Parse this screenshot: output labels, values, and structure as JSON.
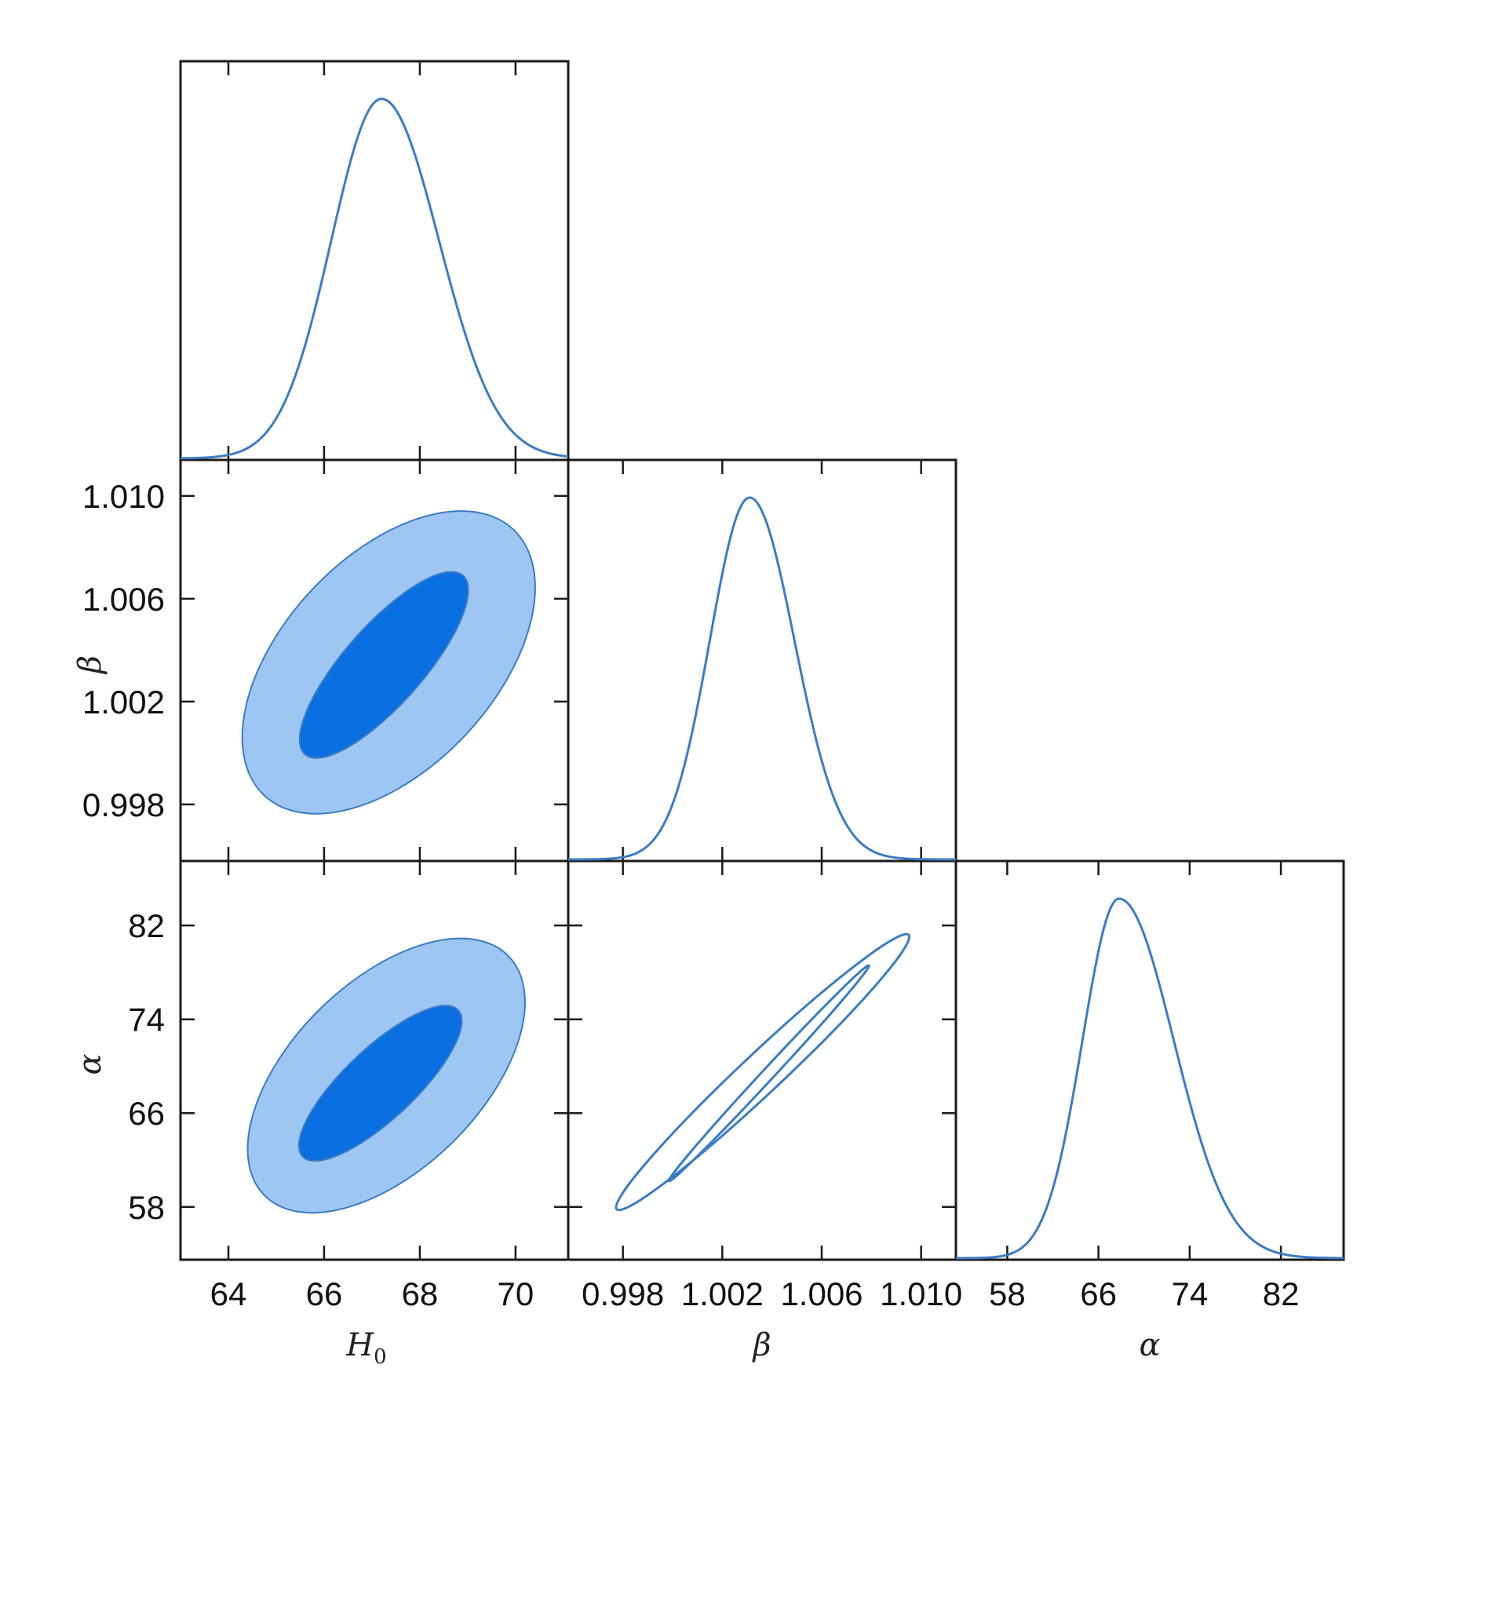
{
  "chart_data": {
    "type": "corner",
    "parameters": [
      {
        "key": "H0",
        "label": "H",
        "subscript": "0",
        "range": [
          63,
          71.1
        ],
        "ticks": [
          64,
          66,
          68,
          70
        ],
        "tick_labels": [
          "64",
          "66",
          "68",
          "70"
        ]
      },
      {
        "key": "beta",
        "label": "β",
        "subscript": "",
        "range": [
          0.9958,
          1.0114
        ],
        "ticks": [
          0.998,
          1.002,
          1.006,
          1.01
        ],
        "tick_labels": [
          "0.998",
          "1.002",
          "1.006",
          "1.010"
        ]
      },
      {
        "key": "alpha",
        "label": "α",
        "subscript": "",
        "range": [
          53.5,
          87.5
        ],
        "ticks": [
          58,
          66,
          74,
          82
        ],
        "tick_labels": [
          "58",
          "66",
          "74",
          "82"
        ]
      }
    ],
    "marginals": [
      {
        "param": "H0",
        "peak": 67.2,
        "sigma_left": 1.05,
        "sigma_right": 1.2
      },
      {
        "param": "beta",
        "peak": 1.0031,
        "sigma_left": 0.0016,
        "sigma_right": 0.0018
      },
      {
        "param": "alpha",
        "peak": 67.8,
        "sigma_left": 3.2,
        "sigma_right": 4.8
      }
    ],
    "contours": [
      {
        "x": "H0",
        "y": "beta",
        "center": [
          67.25,
          1.0035
        ],
        "levels": [
          {
            "name": "68%",
            "axis_a": [
              65.6,
              0.99995
            ],
            "axis_b": [
              68.9,
              1.0069
            ],
            "half_width": 0.33
          },
          {
            "name": "95%",
            "axis_a": [
              64.75,
              0.99835
            ],
            "axis_b": [
              69.95,
              1.0087
            ],
            "half_width": 0.58
          }
        ]
      },
      {
        "x": "H0",
        "y": "alpha",
        "center": [
          67.15,
          68.4
        ],
        "levels": [
          {
            "name": "68%",
            "axis_a": [
              65.55,
              62.3
            ],
            "axis_b": [
              68.8,
              74.8
            ],
            "half_width": 0.33
          },
          {
            "name": "95%",
            "axis_a": [
              64.75,
              59.0
            ],
            "axis_b": [
              69.85,
              79.4
            ],
            "half_width": 0.55
          }
        ]
      },
      {
        "x": "beta",
        "y": "alpha",
        "center": [
          1.00365,
          69.5
        ],
        "levels": [
          {
            "name": "68%",
            "axis_a": [
              0.99985,
              60.2
            ],
            "axis_b": [
              1.0079,
              78.6
            ],
            "half_width": 0.04
          },
          {
            "name": "95%",
            "axis_a": [
              0.99775,
              57.8
            ],
            "axis_b": [
              1.0095,
              81.2
            ],
            "half_width": 0.1
          }
        ]
      }
    ],
    "colors": {
      "inner_fill": "#0a6fe0",
      "outer_fill": "#9dc6f3",
      "edge": "#3a7cc4",
      "line": "#3a7cc4"
    }
  }
}
